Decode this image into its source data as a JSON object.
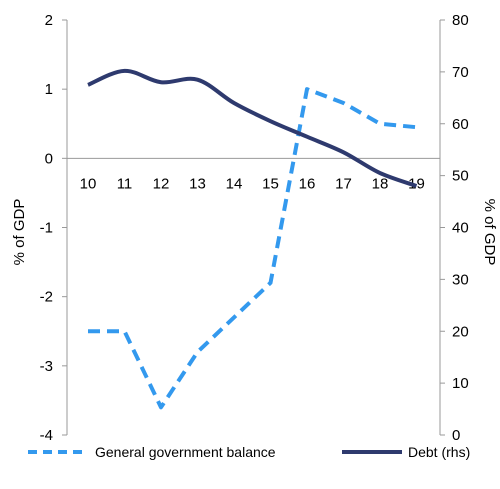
{
  "chart_data": {
    "type": "line",
    "x": [
      "10",
      "11",
      "12",
      "13",
      "14",
      "15",
      "16",
      "17",
      "18",
      "19"
    ],
    "ylabel": "% of GDP",
    "ylabel_right": "% of GDP",
    "ylim": [
      -4,
      2
    ],
    "ylim_right": [
      0,
      80
    ],
    "y_ticks": [
      "2",
      "1",
      "0",
      "-1",
      "-2",
      "-3",
      "-4"
    ],
    "y_ticks_right": [
      "80",
      "70",
      "60",
      "50",
      "40",
      "30",
      "20",
      "10",
      "0"
    ],
    "grid": false,
    "legend_position": "bottom",
    "series": [
      {
        "name": "General government balance",
        "axis": "left",
        "style": "dashed",
        "color": "#3399EE",
        "values": [
          -2.5,
          -2.5,
          -3.6,
          -2.8,
          -2.3,
          -1.8,
          1.0,
          0.8,
          0.5,
          0.45
        ]
      },
      {
        "name": "Debt  (rhs)",
        "axis": "right",
        "style": "solid",
        "color": "#2E3A6E",
        "values": [
          67.5,
          70.2,
          68.0,
          68.5,
          64.0,
          60.5,
          57.5,
          54.5,
          50.5,
          48.0
        ]
      }
    ]
  }
}
